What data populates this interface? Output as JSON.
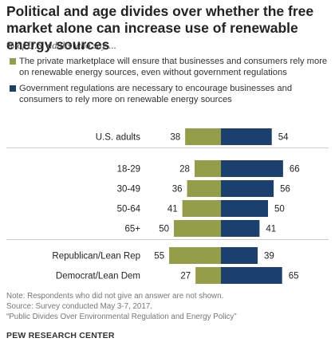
{
  "title": "Political and age divides over whether the free market alone can increase use of renewable energy sources",
  "subtitle": "% of U.S. adults who say ...",
  "legend": [
    {
      "label": "The private marketplace will ensure that businesses and consumers rely more on renewable energy sources, even without government regulations",
      "color": "#949d48"
    },
    {
      "label": "Government regulations are necessary to encourage businesses and consumers to rely more on renewable energy sources",
      "color": "#1b3f6e"
    }
  ],
  "chart_data": {
    "type": "bar",
    "orientation": "horizontal-diverging",
    "categories": [
      "U.S. adults",
      "18-29",
      "30-49",
      "50-64",
      "65+",
      "Republican/Lean Rep",
      "Democrat/Lean Dem"
    ],
    "series": [
      {
        "name": "The private marketplace will ensure that businesses and consumers rely more on renewable energy sources, even without government regulations",
        "values": [
          38,
          28,
          36,
          41,
          50,
          55,
          27
        ],
        "color": "#949d48"
      },
      {
        "name": "Government regulations are necessary to encourage businesses and consumers to rely more on renewable energy sources",
        "values": [
          54,
          66,
          56,
          50,
          41,
          39,
          65
        ],
        "color": "#1b3f6e"
      }
    ]
  },
  "notes": {
    "note": "Note: Respondents who did not give an answer are not shown.",
    "source": "Source: Survey conducted May 3-7, 2017.",
    "report": "“Public Divides Over Environmental Regulation and Energy Policy”"
  },
  "brand": "PEW RESEARCH CENTER",
  "colors": {
    "divider": "#cccccc"
  }
}
